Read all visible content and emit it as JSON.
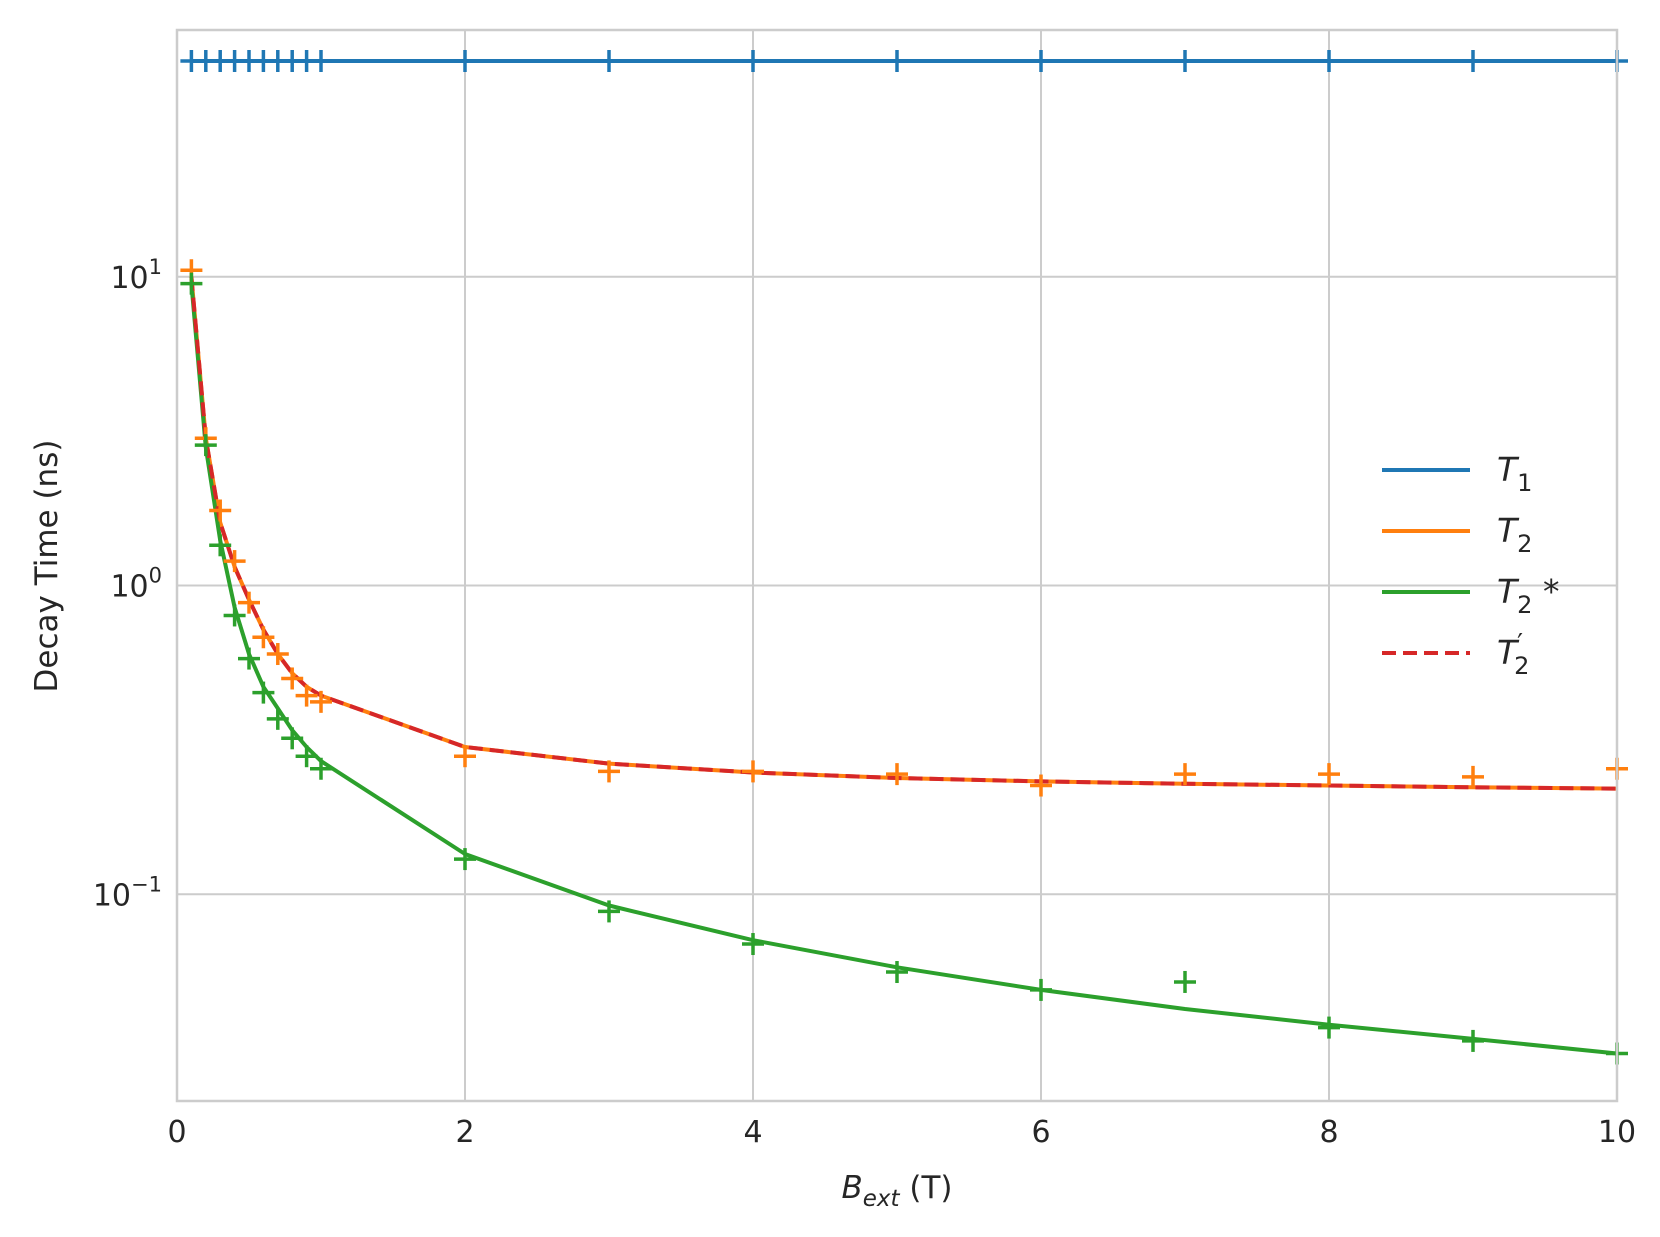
{
  "chart_data": {
    "type": "line",
    "xlabel": {
      "main": "B",
      "sub": "ext",
      "unit": " (T)"
    },
    "ylabel": "Decay Time (ns)",
    "xlim": [
      0,
      10
    ],
    "ylim": [
      0.0214,
      63
    ],
    "yscale": "log",
    "grid": true,
    "legend_position": "center-right",
    "x_ticks": [
      0,
      2,
      4,
      6,
      8,
      10
    ],
    "y_ticks": [
      {
        "value": 0.1,
        "base": "10",
        "exp": "−1"
      },
      {
        "value": 1,
        "base": "10",
        "exp": "0"
      },
      {
        "value": 10,
        "base": "10",
        "exp": "1"
      }
    ],
    "series": [
      {
        "name": "T1",
        "label_main": "T",
        "label_sub": "1",
        "label_suffix": "",
        "label_prime": "",
        "color": "#1f77b4",
        "dash": false,
        "line_x": [
          0.1,
          10
        ],
        "line_y": [
          50,
          50
        ],
        "markers_x": [
          0.1,
          0.2,
          0.3,
          0.4,
          0.5,
          0.6,
          0.7,
          0.8,
          0.9,
          1,
          2,
          3,
          4,
          5,
          6,
          7,
          8,
          9,
          10
        ],
        "markers_y": [
          50,
          50,
          50,
          50,
          50,
          50,
          50,
          50,
          50,
          50,
          50,
          50,
          50,
          50,
          50,
          50,
          50,
          50,
          50
        ]
      },
      {
        "name": "T2",
        "label_main": "T",
        "label_sub": "2",
        "label_suffix": "",
        "label_prime": "",
        "color": "#ff7f0e",
        "dash": false,
        "line_x": [
          0.1,
          0.2,
          0.3,
          0.4,
          0.5,
          0.6,
          0.7,
          0.8,
          0.9,
          1,
          2,
          3,
          4,
          5,
          6,
          7,
          8,
          9,
          10
        ],
        "line_y": [
          10,
          3.0,
          1.6,
          1.15,
          0.9,
          0.72,
          0.6,
          0.52,
          0.47,
          0.44,
          0.3,
          0.265,
          0.248,
          0.238,
          0.232,
          0.228,
          0.225,
          0.222,
          0.22
        ],
        "markers_x": [
          0.1,
          0.2,
          0.3,
          0.4,
          0.5,
          0.6,
          0.7,
          0.8,
          0.9,
          1,
          2,
          3,
          4,
          5,
          6,
          7,
          8,
          9,
          10
        ],
        "markers_y": [
          10.5,
          3.0,
          1.75,
          1.2,
          0.88,
          0.68,
          0.6,
          0.5,
          0.44,
          0.42,
          0.28,
          0.25,
          0.25,
          0.245,
          0.225,
          0.245,
          0.245,
          0.24,
          0.255
        ]
      },
      {
        "name": "T2*",
        "label_main": "T",
        "label_sub": "2",
        "label_suffix": " *",
        "label_prime": "",
        "color": "#2ca02c",
        "dash": false,
        "line_x": [
          0.1,
          0.2,
          0.3,
          0.4,
          0.5,
          0.6,
          0.7,
          0.8,
          0.9,
          1,
          2,
          3,
          4,
          5,
          6,
          7,
          8,
          9,
          10
        ],
        "line_y": [
          9.5,
          2.8,
          1.4,
          0.85,
          0.6,
          0.47,
          0.4,
          0.34,
          0.3,
          0.27,
          0.135,
          0.092,
          0.071,
          0.058,
          0.049,
          0.0425,
          0.0378,
          0.034,
          0.0305
        ],
        "markers_x": [
          0.1,
          0.2,
          0.3,
          0.4,
          0.5,
          0.6,
          0.7,
          0.8,
          0.9,
          1,
          2,
          3,
          4,
          5,
          6,
          7,
          8,
          9,
          10
        ],
        "markers_y": [
          9.5,
          2.85,
          1.35,
          0.8,
          0.58,
          0.45,
          0.37,
          0.32,
          0.28,
          0.255,
          0.13,
          0.088,
          0.069,
          0.056,
          0.049,
          0.052,
          0.037,
          0.0335,
          0.0305
        ]
      },
      {
        "name": "T2'",
        "label_main": "T",
        "label_sub": "2",
        "label_suffix": "",
        "label_prime": "′",
        "color": "#d62728",
        "dash": true,
        "line_x": [
          0.1,
          0.2,
          0.3,
          0.4,
          0.5,
          0.6,
          0.7,
          0.8,
          0.9,
          1,
          2,
          3,
          4,
          5,
          6,
          7,
          8,
          9,
          10
        ],
        "line_y": [
          10,
          3.0,
          1.6,
          1.15,
          0.9,
          0.72,
          0.6,
          0.52,
          0.47,
          0.44,
          0.3,
          0.265,
          0.248,
          0.238,
          0.232,
          0.228,
          0.225,
          0.222,
          0.22
        ],
        "markers_x": [],
        "markers_y": []
      }
    ]
  }
}
